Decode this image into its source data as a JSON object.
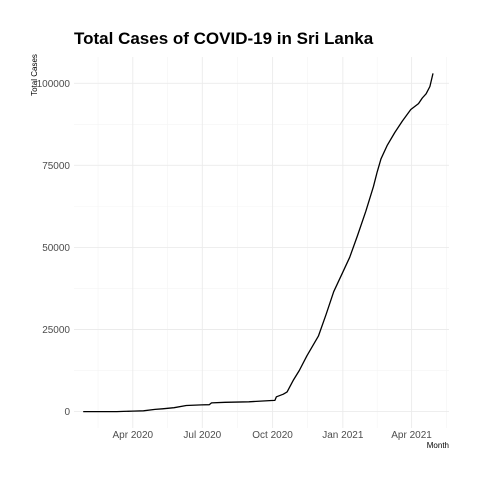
{
  "chart_data": {
    "type": "line",
    "title": "Total Cases of COVID-19 in Sri Lanka",
    "xlabel": "Month",
    "ylabel": "Total Cases",
    "x_type": "date",
    "xlim": [
      "2020-01-15",
      "2021-05-20"
    ],
    "ylim": [
      -5000,
      108000
    ],
    "x_ticks": [
      {
        "date": "2020-04-01",
        "label": "Apr 2020"
      },
      {
        "date": "2020-07-01",
        "label": "Jul 2020"
      },
      {
        "date": "2020-10-01",
        "label": "Oct 2020"
      },
      {
        "date": "2021-01-01",
        "label": "Jan 2021"
      },
      {
        "date": "2021-04-01",
        "label": "Apr 2021"
      }
    ],
    "y_ticks": [
      0,
      25000,
      50000,
      75000,
      100000
    ],
    "y_tick_labels": [
      "0",
      "25000",
      "50000",
      "75000",
      "100000"
    ],
    "grid": true,
    "legend": "none",
    "series": [
      {
        "color": "#000000",
        "points": [
          [
            "2020-01-27",
            1
          ],
          [
            "2020-03-11",
            1
          ],
          [
            "2020-03-20",
            70
          ],
          [
            "2020-04-01",
            150
          ],
          [
            "2020-04-15",
            240
          ],
          [
            "2020-04-30",
            650
          ],
          [
            "2020-05-10",
            860
          ],
          [
            "2020-05-25",
            1180
          ],
          [
            "2020-06-10",
            1850
          ],
          [
            "2020-06-30",
            2050
          ],
          [
            "2020-07-10",
            2100
          ],
          [
            "2020-07-13",
            2650
          ],
          [
            "2020-07-31",
            2815
          ],
          [
            "2020-08-31",
            2980
          ],
          [
            "2020-09-30",
            3380
          ],
          [
            "2020-10-04",
            3400
          ],
          [
            "2020-10-06",
            4500
          ],
          [
            "2020-10-15",
            5300
          ],
          [
            "2020-10-20",
            6000
          ],
          [
            "2020-10-28",
            9500
          ],
          [
            "2020-11-05",
            12500
          ],
          [
            "2020-11-15",
            17000
          ],
          [
            "2020-11-30",
            23000
          ],
          [
            "2020-12-10",
            29500
          ],
          [
            "2020-12-20",
            36500
          ],
          [
            "2020-12-31",
            42000
          ],
          [
            "2021-01-10",
            47000
          ],
          [
            "2021-01-20",
            53500
          ],
          [
            "2021-01-31",
            61000
          ],
          [
            "2021-02-10",
            68500
          ],
          [
            "2021-02-15",
            73000
          ],
          [
            "2021-02-20",
            77000
          ],
          [
            "2021-02-28",
            81000
          ],
          [
            "2021-03-10",
            85000
          ],
          [
            "2021-03-20",
            88500
          ],
          [
            "2021-03-31",
            92000
          ],
          [
            "2021-04-10",
            93800
          ],
          [
            "2021-04-15",
            95500
          ],
          [
            "2021-04-20",
            96800
          ],
          [
            "2021-04-25",
            99000
          ],
          [
            "2021-04-29",
            103000
          ]
        ]
      }
    ]
  }
}
